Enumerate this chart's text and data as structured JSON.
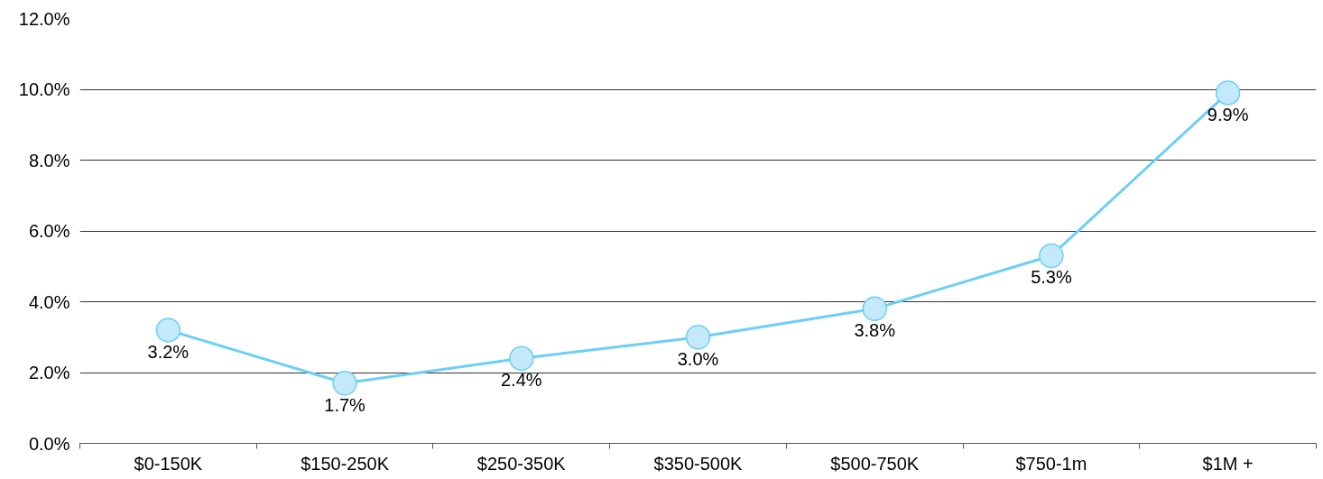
{
  "chart_data": {
    "type": "line",
    "categories": [
      "$0-150K",
      "$150-250K",
      "$250-350K",
      "$350-500K",
      "$500-750K",
      "$750-1m",
      "$1M +"
    ],
    "series": [
      {
        "color": "#6ccff5",
        "values": [
          3.2,
          1.7,
          2.4,
          3.0,
          3.8,
          5.3,
          9.9
        ],
        "value_labels": [
          "3.2%",
          "1.7%",
          "2.4%",
          "3.0%",
          "3.8%",
          "5.3%",
          "9.9%"
        ]
      }
    ],
    "ylim": [
      0,
      12
    ],
    "yticks": [
      {
        "value": 0,
        "label": "0.0%"
      },
      {
        "value": 2,
        "label": "2.0%"
      },
      {
        "value": 4,
        "label": "4.0%"
      },
      {
        "value": 6,
        "label": "6.0%"
      },
      {
        "value": 8,
        "label": "8.0%"
      },
      {
        "value": 10,
        "label": "10.0%"
      },
      {
        "value": 12,
        "label": "12.0%"
      }
    ],
    "grid": "y",
    "marker": "circle",
    "line_style": "solid"
  }
}
